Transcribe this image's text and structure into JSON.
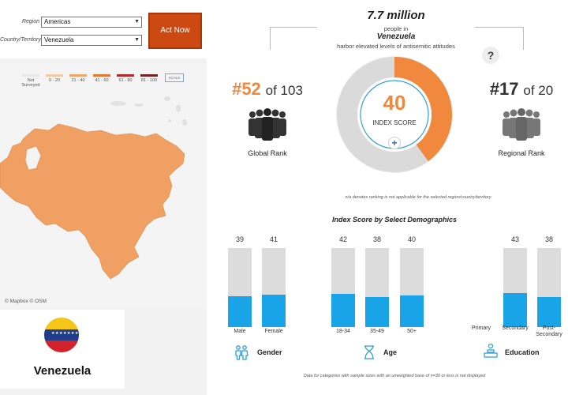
{
  "filters": {
    "region_label": "Region",
    "region_value": "Americas",
    "country_label": "Country/Territory",
    "country_value": "Venezuela",
    "act_now": "Act Now"
  },
  "legend": {
    "items": [
      {
        "label": "Not Surveyed",
        "color": "#e8e8e8"
      },
      {
        "label": "0 - 20",
        "color": "#f7c9a0"
      },
      {
        "label": "21 - 40",
        "color": "#f3a566"
      },
      {
        "label": "41 - 60",
        "color": "#e8772e"
      },
      {
        "label": "61 - 80",
        "color": "#b5282e"
      },
      {
        "label": "81 - 100",
        "color": "#7a1f24"
      }
    ],
    "scale_label": "SCALE"
  },
  "map": {
    "attribution": "© Mapbox  © OSM",
    "country_color": "#f0a063"
  },
  "country": {
    "name": "Venezuela",
    "flag_colors": [
      "#f5c518",
      "#1f3d8a",
      "#d2232a"
    ]
  },
  "summary": {
    "population": "7.7 million",
    "line1": "people in",
    "country": "Venezuela",
    "line3": "harbor elevated levels of antisemitic attitudes"
  },
  "global_rank": {
    "rank": "#52",
    "of": "of 103",
    "label": "Global Rank"
  },
  "regional_rank": {
    "rank": "#17",
    "of": "of 20",
    "label": "Regional Rank"
  },
  "index": {
    "score": "40",
    "label": "INDEX SCORE",
    "value": 40,
    "color": "#f0883d"
  },
  "help_symbol": "?",
  "plus_symbol": "+",
  "na_note": "n/a denotes ranking is not applicable for the selected region/country/territory",
  "demographics_title": "Index Score by Select Demographics",
  "groups": [
    {
      "label": "Gender",
      "bars": [
        {
          "label": "Male",
          "value": 39
        },
        {
          "label": "Female",
          "value": 41
        }
      ]
    },
    {
      "label": "Age",
      "bars": [
        {
          "label": "18-34",
          "value": 42
        },
        {
          "label": "35-49",
          "value": 38
        },
        {
          "label": "50+",
          "value": 40
        }
      ]
    },
    {
      "label": "Education",
      "bars": [
        {
          "label": "Primary",
          "value": null
        },
        {
          "label": "Secondary",
          "value": 43
        },
        {
          "label": "Post-Secondary",
          "value": 38
        }
      ]
    }
  ],
  "footnote": "Data for categories with sample sizes with an unweighted base of n=30 or less is not displayed",
  "colors": {
    "accent": "#f0883d",
    "bar_fill": "#1aa4e8",
    "bar_track": "#dcdcdc",
    "button": "#cc4a12"
  }
}
